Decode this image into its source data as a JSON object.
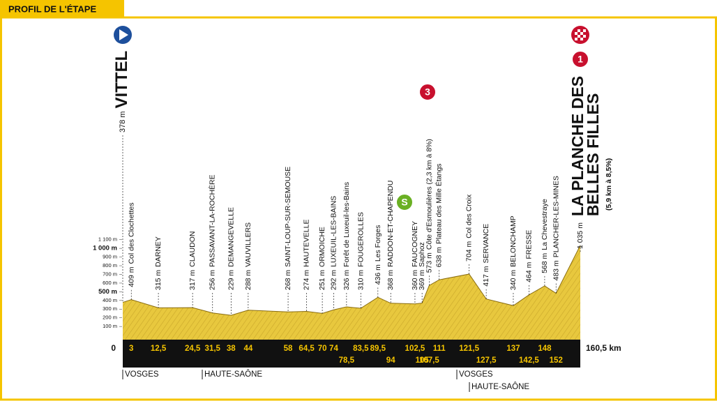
{
  "chart_data": {
    "type": "profile",
    "title": "PROFIL DE L'ÉTAPE",
    "x": [
      0,
      3,
      {
        "value": 12.5,
        "label": "12,5"
      },
      {
        "value": 24.5,
        "label": "24,5"
      },
      {
        "value": 31.5,
        "label": "31,5"
      },
      38,
      44,
      58,
      {
        "value": 64.5,
        "label": "64,5"
      },
      70,
      74,
      {
        "value": 78.5,
        "label": "78,5"
      },
      {
        "value": 83.5,
        "label": "83,5"
      },
      {
        "value": 89.5,
        "label": "89,5"
      },
      94,
      {
        "value": 102.5,
        "label": "102,5"
      },
      105,
      {
        "value": 107.5,
        "label": "107,5"
      },
      111,
      {
        "value": 121.5,
        "label": "121,5"
      },
      {
        "value": 127.5,
        "label": "127,5"
      },
      137,
      {
        "value": 142.5,
        "label": "142,5"
      },
      148,
      152,
      {
        "value": 160.5,
        "label": "160,5 km"
      }
    ],
    "names": [
      "VITTEL",
      "Col des Clochettes",
      "DARNEY",
      "CLAUDON",
      "PASSAVANT-LA-ROCHÈRE",
      "DEMANGEVELLE",
      "VAUVILLERS",
      "SAINT-LOUP-SUR-SEMOUSE",
      "HAUTEVELLE",
      "ORMOICHE",
      "LUXEUIL-LES-BAINS",
      "Forêt de Luxeuil-les-Bains",
      "FOUGEROLLES",
      "Les Forges",
      "RADDON-ET-CHAPENDU",
      "FAUCOGNEY",
      "Saphoz",
      "Côte d'Esmoulières (2,3 km à 8%)",
      "Plateau des Mille Étangs",
      "Col des Croix",
      "SERVANCE",
      "BELONCHAMP",
      "FRESSE",
      "La Chevestraye",
      "PLANCHER-LES-MINES",
      "LA PLANCHE DES BELLES FILLES"
    ],
    "values": [
      378,
      409,
      315,
      317,
      256,
      229,
      288,
      268,
      274,
      251,
      292,
      326,
      310,
      436,
      368,
      360,
      369,
      573,
      638,
      704,
      417,
      340,
      464,
      568,
      483,
      1035
    ],
    "value_labels": [
      "378 m",
      "409 m",
      "315 m",
      "317 m",
      "256 m",
      "229 m",
      "288 m",
      "268 m",
      "274 m",
      "251 m",
      "292 m",
      "326 m",
      "310 m",
      "436 m",
      "368 m",
      "360 m",
      "369 m",
      "573 m",
      "638 m",
      "704 m",
      "417 m",
      "340 m",
      "464 m",
      "568 m",
      "483 m",
      "1 035 m"
    ],
    "finish_detail": "(5,9 km à 8,5%)",
    "badges": [
      "S",
      "3",
      "1"
    ],
    "regions": [
      "VOSGES",
      "HAUTE-SAÔNE",
      "VOSGES",
      "HAUTE-SAÔNE"
    ],
    "ylim": [
      0,
      1100
    ],
    "yticks": [
      {
        "value": 100,
        "label": "100 m"
      },
      {
        "value": 200,
        "label": "200 m"
      },
      {
        "value": 300,
        "label": "300 m"
      },
      {
        "value": 400,
        "label": "400 m"
      },
      {
        "value": 500,
        "label": "500 m"
      },
      {
        "value": 600,
        "label": "600 m"
      },
      {
        "value": 700,
        "label": "700 m"
      },
      {
        "value": 800,
        "label": "800 m"
      },
      {
        "value": 900,
        "label": "900 m"
      },
      {
        "value": 1000,
        "label": "1 000 m"
      },
      {
        "value": 1100,
        "label": "1 100 m"
      }
    ],
    "color": "#e6c53a"
  }
}
